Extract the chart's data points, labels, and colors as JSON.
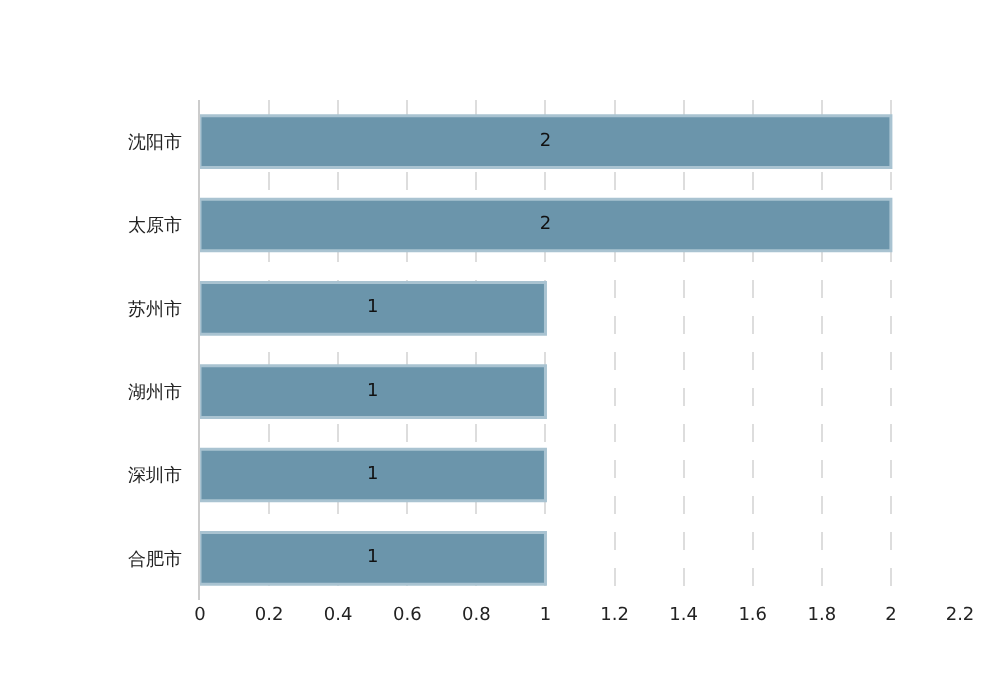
{
  "chart_data": {
    "type": "bar",
    "orientation": "horizontal",
    "categories": [
      "沈阳市",
      "太原市",
      "苏州市",
      "湖州市",
      "深圳市",
      "合肥市"
    ],
    "values": [
      2,
      2,
      1,
      1,
      1,
      1
    ],
    "color": "#6b95ab",
    "xlim": [
      0,
      2.2
    ],
    "xticks": [
      0,
      0.2,
      0.4,
      0.6,
      0.8,
      1,
      1.2,
      1.4,
      1.6,
      1.8,
      2,
      2.2
    ],
    "grid": "x",
    "data_labels": true
  }
}
